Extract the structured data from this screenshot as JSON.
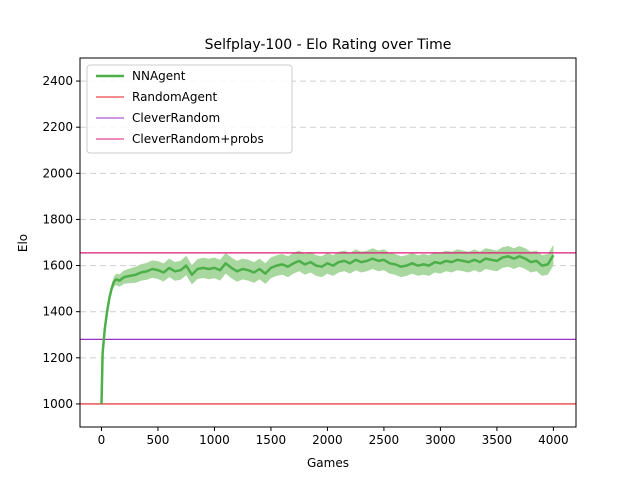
{
  "chart_data": {
    "type": "line",
    "title": "Selfplay-100 - Elo Rating over Time",
    "xlabel": "Games",
    "ylabel": "Elo",
    "xlim": [
      -190,
      4200
    ],
    "ylim": [
      900,
      2500
    ],
    "xticks": [
      0,
      500,
      1000,
      1500,
      2000,
      2500,
      3000,
      3500,
      4000
    ],
    "yticks": [
      1000,
      1200,
      1400,
      1600,
      1800,
      2000,
      2200,
      2400
    ],
    "grid": "y-dashed",
    "legend_position": "top-left",
    "series": [
      {
        "name": "NNAgent",
        "kind": "line-with-band",
        "color": "#4daf4a",
        "band_color": "#a3d69a",
        "points": [
          [
            0,
            1000
          ],
          [
            10,
            1220
          ],
          [
            30,
            1330
          ],
          [
            50,
            1400
          ],
          [
            70,
            1460
          ],
          [
            90,
            1500
          ],
          [
            110,
            1530
          ],
          [
            130,
            1540
          ],
          [
            160,
            1535
          ],
          [
            200,
            1550
          ],
          [
            250,
            1555
          ],
          [
            300,
            1560
          ],
          [
            350,
            1570
          ],
          [
            400,
            1575
          ],
          [
            450,
            1585
          ],
          [
            500,
            1580
          ],
          [
            550,
            1570
          ],
          [
            600,
            1590
          ],
          [
            650,
            1575
          ],
          [
            700,
            1580
          ],
          [
            750,
            1600
          ],
          [
            800,
            1560
          ],
          [
            850,
            1585
          ],
          [
            900,
            1590
          ],
          [
            950,
            1585
          ],
          [
            1000,
            1590
          ],
          [
            1050,
            1580
          ],
          [
            1100,
            1610
          ],
          [
            1150,
            1590
          ],
          [
            1200,
            1575
          ],
          [
            1250,
            1585
          ],
          [
            1300,
            1580
          ],
          [
            1350,
            1570
          ],
          [
            1400,
            1585
          ],
          [
            1450,
            1565
          ],
          [
            1500,
            1590
          ],
          [
            1550,
            1600
          ],
          [
            1600,
            1605
          ],
          [
            1650,
            1595
          ],
          [
            1700,
            1610
          ],
          [
            1750,
            1620
          ],
          [
            1800,
            1605
          ],
          [
            1850,
            1615
          ],
          [
            1900,
            1600
          ],
          [
            1950,
            1595
          ],
          [
            2000,
            1610
          ],
          [
            2050,
            1600
          ],
          [
            2100,
            1615
          ],
          [
            2150,
            1620
          ],
          [
            2200,
            1610
          ],
          [
            2250,
            1625
          ],
          [
            2300,
            1615
          ],
          [
            2350,
            1620
          ],
          [
            2400,
            1630
          ],
          [
            2450,
            1620
          ],
          [
            2500,
            1625
          ],
          [
            2550,
            1610
          ],
          [
            2600,
            1605
          ],
          [
            2650,
            1595
          ],
          [
            2700,
            1600
          ],
          [
            2750,
            1610
          ],
          [
            2800,
            1600
          ],
          [
            2850,
            1605
          ],
          [
            2900,
            1600
          ],
          [
            2950,
            1615
          ],
          [
            3000,
            1610
          ],
          [
            3050,
            1620
          ],
          [
            3100,
            1615
          ],
          [
            3150,
            1625
          ],
          [
            3200,
            1620
          ],
          [
            3250,
            1615
          ],
          [
            3300,
            1625
          ],
          [
            3350,
            1615
          ],
          [
            3400,
            1630
          ],
          [
            3450,
            1625
          ],
          [
            3500,
            1620
          ],
          [
            3550,
            1635
          ],
          [
            3600,
            1640
          ],
          [
            3650,
            1630
          ],
          [
            3700,
            1640
          ],
          [
            3750,
            1630
          ],
          [
            3800,
            1615
          ],
          [
            3850,
            1620
          ],
          [
            3900,
            1600
          ],
          [
            3950,
            1605
          ],
          [
            4000,
            1645
          ]
        ],
        "band_halfwidth": [
          [
            0,
            0
          ],
          [
            50,
            10
          ],
          [
            130,
            25
          ],
          [
            300,
            35
          ],
          [
            600,
            40
          ],
          [
            1000,
            45
          ],
          [
            1500,
            45
          ],
          [
            2500,
            45
          ],
          [
            4000,
            45
          ]
        ]
      },
      {
        "name": "RandomAgent",
        "kind": "hline",
        "y": 1000,
        "color": "#e41a1c"
      },
      {
        "name": "CleverRandom",
        "kind": "hline",
        "y": 1280,
        "color": "#9b30c8"
      },
      {
        "name": "CleverRandom+probs",
        "kind": "hline",
        "y": 1655,
        "color": "#e0197a"
      }
    ]
  }
}
